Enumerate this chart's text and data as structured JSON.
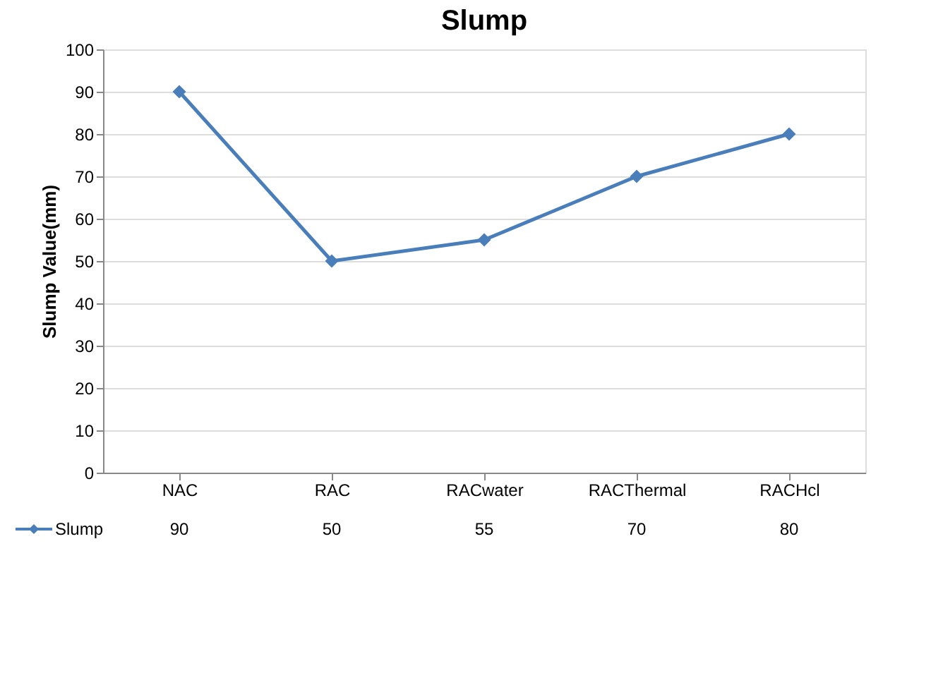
{
  "chart_data": {
    "type": "line",
    "title": "Slump",
    "ylabel": "Slump Value(mm)",
    "categories": [
      "NAC",
      "RAC",
      "RACwater",
      "RACThermal",
      "RACHcl"
    ],
    "series": [
      {
        "name": "Slump",
        "color": "#4a7ebb",
        "values": [
          90,
          50,
          55,
          70,
          80
        ]
      }
    ],
    "ylim": [
      0,
      100
    ],
    "yticks": [
      0,
      10,
      20,
      30,
      40,
      50,
      60,
      70,
      80,
      90,
      100
    ],
    "grid": "y",
    "legend": "bottom",
    "marker": "diamond",
    "line_style": "solid",
    "data_labels": true
  }
}
